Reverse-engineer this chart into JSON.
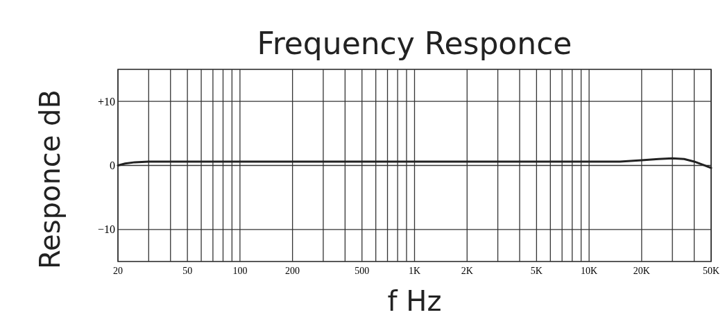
{
  "chart_data": {
    "type": "line",
    "title": "Frequency Responce",
    "xlabel": "f Hz",
    "ylabel": "Responce dB",
    "log": "x",
    "grid": true,
    "line_style": "solid",
    "marker": "none",
    "xlim": [
      20,
      50000
    ],
    "ylim": [
      -15,
      15
    ],
    "xticks": [
      20,
      {
        "value": 30,
        "label": null
      },
      {
        "value": 40,
        "label": null
      },
      50,
      {
        "value": 60,
        "label": null
      },
      {
        "value": 70,
        "label": null
      },
      {
        "value": 80,
        "label": null
      },
      {
        "value": 90,
        "label": null
      },
      100,
      200,
      {
        "value": 300,
        "label": null
      },
      {
        "value": 400,
        "label": null
      },
      500,
      {
        "value": 600,
        "label": null
      },
      {
        "value": 700,
        "label": null
      },
      {
        "value": 800,
        "label": null
      },
      {
        "value": 900,
        "label": null
      },
      {
        "value": 1000,
        "label": "1K"
      },
      {
        "value": 2000,
        "label": "2K"
      },
      {
        "value": 3000,
        "label": null
      },
      {
        "value": 4000,
        "label": null
      },
      {
        "value": 5000,
        "label": "5K"
      },
      {
        "value": 6000,
        "label": null
      },
      {
        "value": 7000,
        "label": null
      },
      {
        "value": 8000,
        "label": null
      },
      {
        "value": 9000,
        "label": null
      },
      {
        "value": 10000,
        "label": "10K"
      },
      {
        "value": 20000,
        "label": "20K"
      },
      {
        "value": 30000,
        "label": null
      },
      {
        "value": 40000,
        "label": null
      },
      {
        "value": 50000,
        "label": "50K"
      }
    ],
    "yticks": [
      {
        "value": -10,
        "label": "−10"
      },
      0,
      {
        "value": 10,
        "label": "+10"
      }
    ],
    "x": [
      20,
      22,
      25,
      30,
      40,
      100,
      1000,
      10000,
      15000,
      20000,
      25000,
      30000,
      35000,
      40000,
      45000,
      50000
    ],
    "series": [
      {
        "color": "#222222",
        "values": [
          0,
          0.3,
          0.5,
          0.6,
          0.6,
          0.6,
          0.6,
          0.6,
          0.6,
          0.8,
          1.0,
          1.1,
          1.0,
          0.6,
          0.1,
          -0.4
        ]
      }
    ]
  }
}
